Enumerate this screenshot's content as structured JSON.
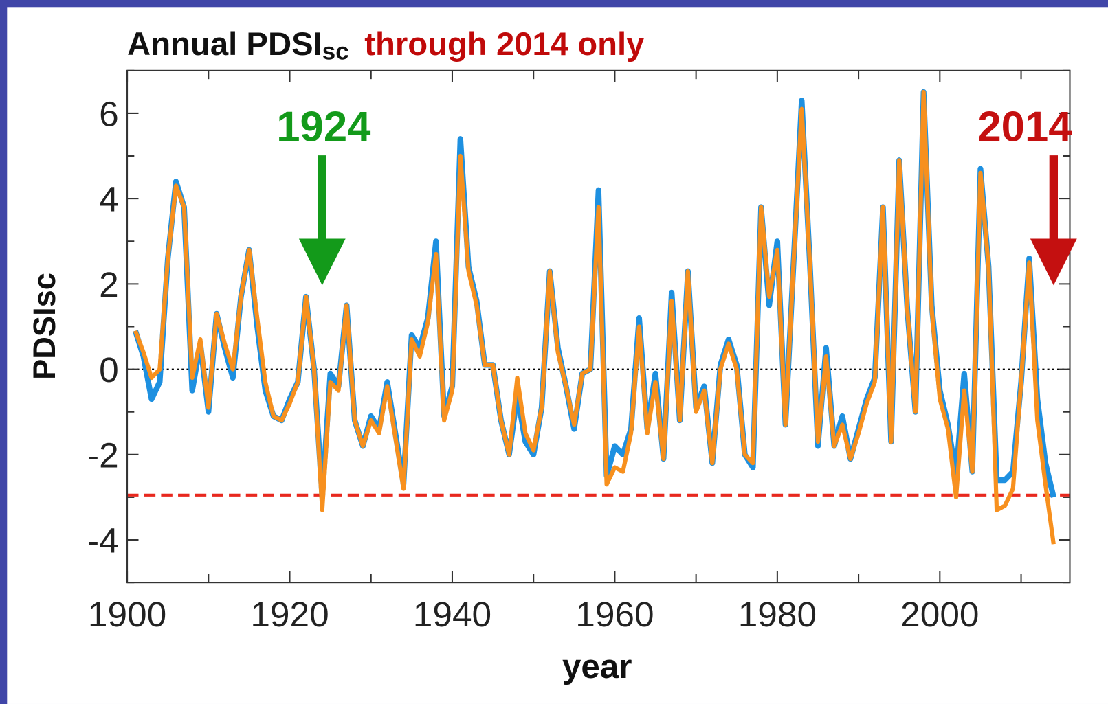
{
  "chart_data": {
    "type": "line",
    "title": "Annual PDSI",
    "title_subscript": "sc",
    "subtitle": "through 2014 only",
    "xlabel": "year",
    "ylabel": "PDSIsc",
    "x": [
      1901,
      1902,
      1903,
      1904,
      1905,
      1906,
      1907,
      1908,
      1909,
      1910,
      1911,
      1912,
      1913,
      1914,
      1915,
      1916,
      1917,
      1918,
      1919,
      1920,
      1921,
      1922,
      1923,
      1924,
      1925,
      1926,
      1927,
      1928,
      1929,
      1930,
      1931,
      1932,
      1933,
      1934,
      1935,
      1936,
      1937,
      1938,
      1939,
      1940,
      1941,
      1942,
      1943,
      1944,
      1945,
      1946,
      1947,
      1948,
      1949,
      1950,
      1951,
      1952,
      1953,
      1954,
      1955,
      1956,
      1957,
      1958,
      1959,
      1960,
      1961,
      1962,
      1963,
      1964,
      1965,
      1966,
      1967,
      1968,
      1969,
      1970,
      1971,
      1972,
      1973,
      1974,
      1975,
      1976,
      1977,
      1978,
      1979,
      1980,
      1981,
      1982,
      1983,
      1984,
      1985,
      1986,
      1987,
      1988,
      1989,
      1990,
      1991,
      1992,
      1993,
      1994,
      1995,
      1996,
      1997,
      1998,
      1999,
      2000,
      2001,
      2002,
      2003,
      2004,
      2005,
      2006,
      2007,
      2008,
      2009,
      2010,
      2011,
      2012,
      2013,
      2014
    ],
    "series": [
      {
        "color": "#1e90e0",
        "values": [
          0.9,
          0.3,
          -0.7,
          -0.3,
          2.6,
          4.4,
          3.8,
          -0.5,
          0.6,
          -1.0,
          1.3,
          0.5,
          -0.2,
          1.7,
          2.8,
          1.0,
          -0.5,
          -1.1,
          -1.2,
          -0.7,
          -0.3,
          1.7,
          0.0,
          -3.0,
          -0.1,
          -0.4,
          1.5,
          -1.2,
          -1.8,
          -1.1,
          -1.4,
          -0.3,
          -1.5,
          -2.7,
          0.8,
          0.5,
          1.2,
          3.0,
          -1.1,
          -0.4,
          5.4,
          2.4,
          1.6,
          0.1,
          0.1,
          -1.2,
          -2.0,
          -0.6,
          -1.7,
          -2.0,
          -0.9,
          2.3,
          0.5,
          -0.4,
          -1.4,
          -0.1,
          0.0,
          4.2,
          -2.5,
          -1.8,
          -2.0,
          -1.4,
          1.2,
          -1.4,
          -0.1,
          -2.1,
          1.8,
          -1.2,
          2.3,
          -0.9,
          -0.4,
          -2.2,
          0.1,
          0.7,
          0.1,
          -2.0,
          -2.3,
          3.8,
          1.5,
          3.0,
          -1.3,
          2.5,
          6.3,
          2.5,
          -1.8,
          0.5,
          -1.8,
          -1.1,
          -2.1,
          -1.4,
          -0.7,
          -0.2,
          3.8,
          -1.7,
          4.9,
          1.4,
          -1.0,
          6.5,
          1.5,
          -0.5,
          -1.3,
          -2.5,
          -0.1,
          -2.4,
          4.7,
          2.4,
          -2.6,
          -2.6,
          -2.4,
          -0.3,
          2.6,
          -0.7,
          -2.2,
          -3.0
        ]
      },
      {
        "color": "#f7901e",
        "values": [
          0.9,
          0.4,
          -0.2,
          0.0,
          2.6,
          4.3,
          3.8,
          -0.2,
          0.7,
          -0.9,
          1.3,
          0.6,
          0.0,
          1.7,
          2.8,
          1.2,
          -0.3,
          -1.1,
          -1.2,
          -0.8,
          -0.3,
          1.7,
          0.0,
          -3.3,
          -0.3,
          -0.5,
          1.5,
          -1.2,
          -1.8,
          -1.2,
          -1.5,
          -0.4,
          -1.6,
          -2.8,
          0.7,
          0.3,
          1.1,
          2.7,
          -1.2,
          -0.5,
          5.0,
          2.3,
          1.5,
          0.1,
          0.1,
          -1.2,
          -2.0,
          -0.2,
          -1.5,
          -1.9,
          -0.9,
          2.3,
          0.4,
          -0.4,
          -1.3,
          -0.1,
          0.0,
          3.8,
          -2.7,
          -2.3,
          -2.4,
          -1.5,
          1.0,
          -1.5,
          -0.3,
          -2.1,
          1.6,
          -1.2,
          2.3,
          -1.0,
          -0.5,
          -2.2,
          0.0,
          0.6,
          0.0,
          -2.0,
          -2.2,
          3.8,
          1.7,
          2.8,
          -1.3,
          2.5,
          6.1,
          2.5,
          -1.7,
          0.3,
          -1.8,
          -1.3,
          -2.1,
          -1.5,
          -0.8,
          -0.3,
          3.8,
          -1.7,
          4.9,
          1.4,
          -1.0,
          6.5,
          1.4,
          -0.7,
          -1.4,
          -3.0,
          -0.5,
          -2.4,
          4.6,
          2.4,
          -3.3,
          -3.2,
          -2.8,
          -0.3,
          2.5,
          -1.2,
          -2.7,
          -4.1
        ]
      }
    ],
    "xlim": [
      1900,
      2016
    ],
    "xticks": [
      1900,
      1920,
      1940,
      1960,
      1980,
      2000
    ],
    "xminorticks": [
      1910,
      1930,
      1950,
      1970,
      1990,
      2010
    ],
    "ylim": [
      -5,
      7
    ],
    "yticks": [
      -4,
      -2,
      0,
      2,
      4,
      6
    ],
    "yminorticks": [
      -5,
      -3,
      -1,
      1,
      3,
      5,
      7
    ],
    "reference_lines": [
      {
        "value": 0,
        "style": "dotted",
        "color": "#000000"
      },
      {
        "value": -2.95,
        "style": "dashed",
        "color": "#e8281e"
      }
    ],
    "annotations": [
      {
        "text": "1924",
        "x": 1924,
        "color": "#139a1a"
      },
      {
        "text": "2014",
        "x": 2014,
        "color": "#c41010"
      }
    ]
  }
}
